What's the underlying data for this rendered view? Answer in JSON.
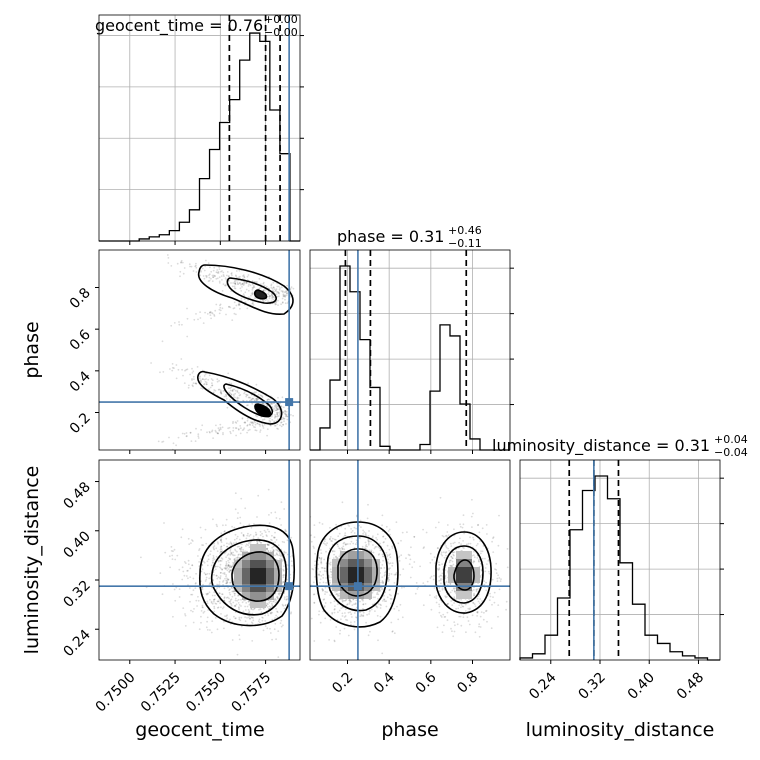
{
  "chart_data": {
    "type": "corner",
    "truth_color": "#4477aa",
    "params": [
      {
        "key": "geocent_time",
        "label": "geocent_time",
        "title_value": "0.76",
        "title_plus": "+0.00",
        "title_minus": "−0.00",
        "lim": [
          0.7483,
          0.7594
        ],
        "ticks": [
          0.75,
          0.7525,
          0.755,
          0.7575
        ],
        "tick_labels": [
          "0.7500",
          "0.7525",
          "0.7550",
          "0.7575"
        ],
        "truth": 0.7588,
        "quantiles": [
          0.7555,
          0.7575,
          0.7583
        ]
      },
      {
        "key": "phase",
        "label": "phase",
        "title_value": "0.31",
        "title_plus": "+0.46",
        "title_minus": "−0.11",
        "lim": [
          0.02,
          0.98
        ],
        "ticks": [
          0.2,
          0.4,
          0.6,
          0.8
        ],
        "tick_labels": [
          "0.2",
          "0.4",
          "0.6",
          "0.8"
        ],
        "truth": 0.25,
        "quantiles": [
          0.19,
          0.31,
          0.77
        ]
      },
      {
        "key": "luminosity_distance",
        "label": "luminosity_distance",
        "title_value": "0.31",
        "title_plus": "+0.04",
        "title_minus": "−0.04",
        "lim": [
          0.19,
          0.515
        ],
        "ticks": [
          0.24,
          0.32,
          0.4,
          0.48
        ],
        "tick_labels": [
          "0.24",
          "0.32",
          "0.40",
          "0.48"
        ],
        "truth": 0.31,
        "quantiles": [
          0.27,
          0.31,
          0.35
        ]
      }
    ],
    "histograms": [
      {
        "param": "geocent_time",
        "edges_range": [
          0.7483,
          0.7594
        ],
        "counts": [
          0,
          0,
          0,
          0,
          1,
          2,
          3,
          5,
          9,
          15,
          30,
          44,
          57,
          68,
          87,
          100,
          96,
          63,
          42,
          0
        ]
      },
      {
        "param": "phase",
        "edges_range": [
          0.02,
          0.98
        ],
        "counts": [
          0,
          12,
          38,
          100,
          86,
          60,
          34,
          2,
          0,
          0,
          0,
          3,
          32,
          68,
          62,
          25,
          6,
          0,
          0,
          0
        ]
      },
      {
        "param": "luminosity_distance",
        "edges_range": [
          0.19,
          0.515
        ],
        "counts": [
          1,
          3,
          12,
          30,
          63,
          82,
          89,
          78,
          47,
          27,
          12,
          8,
          4,
          2,
          1,
          0
        ]
      }
    ]
  }
}
